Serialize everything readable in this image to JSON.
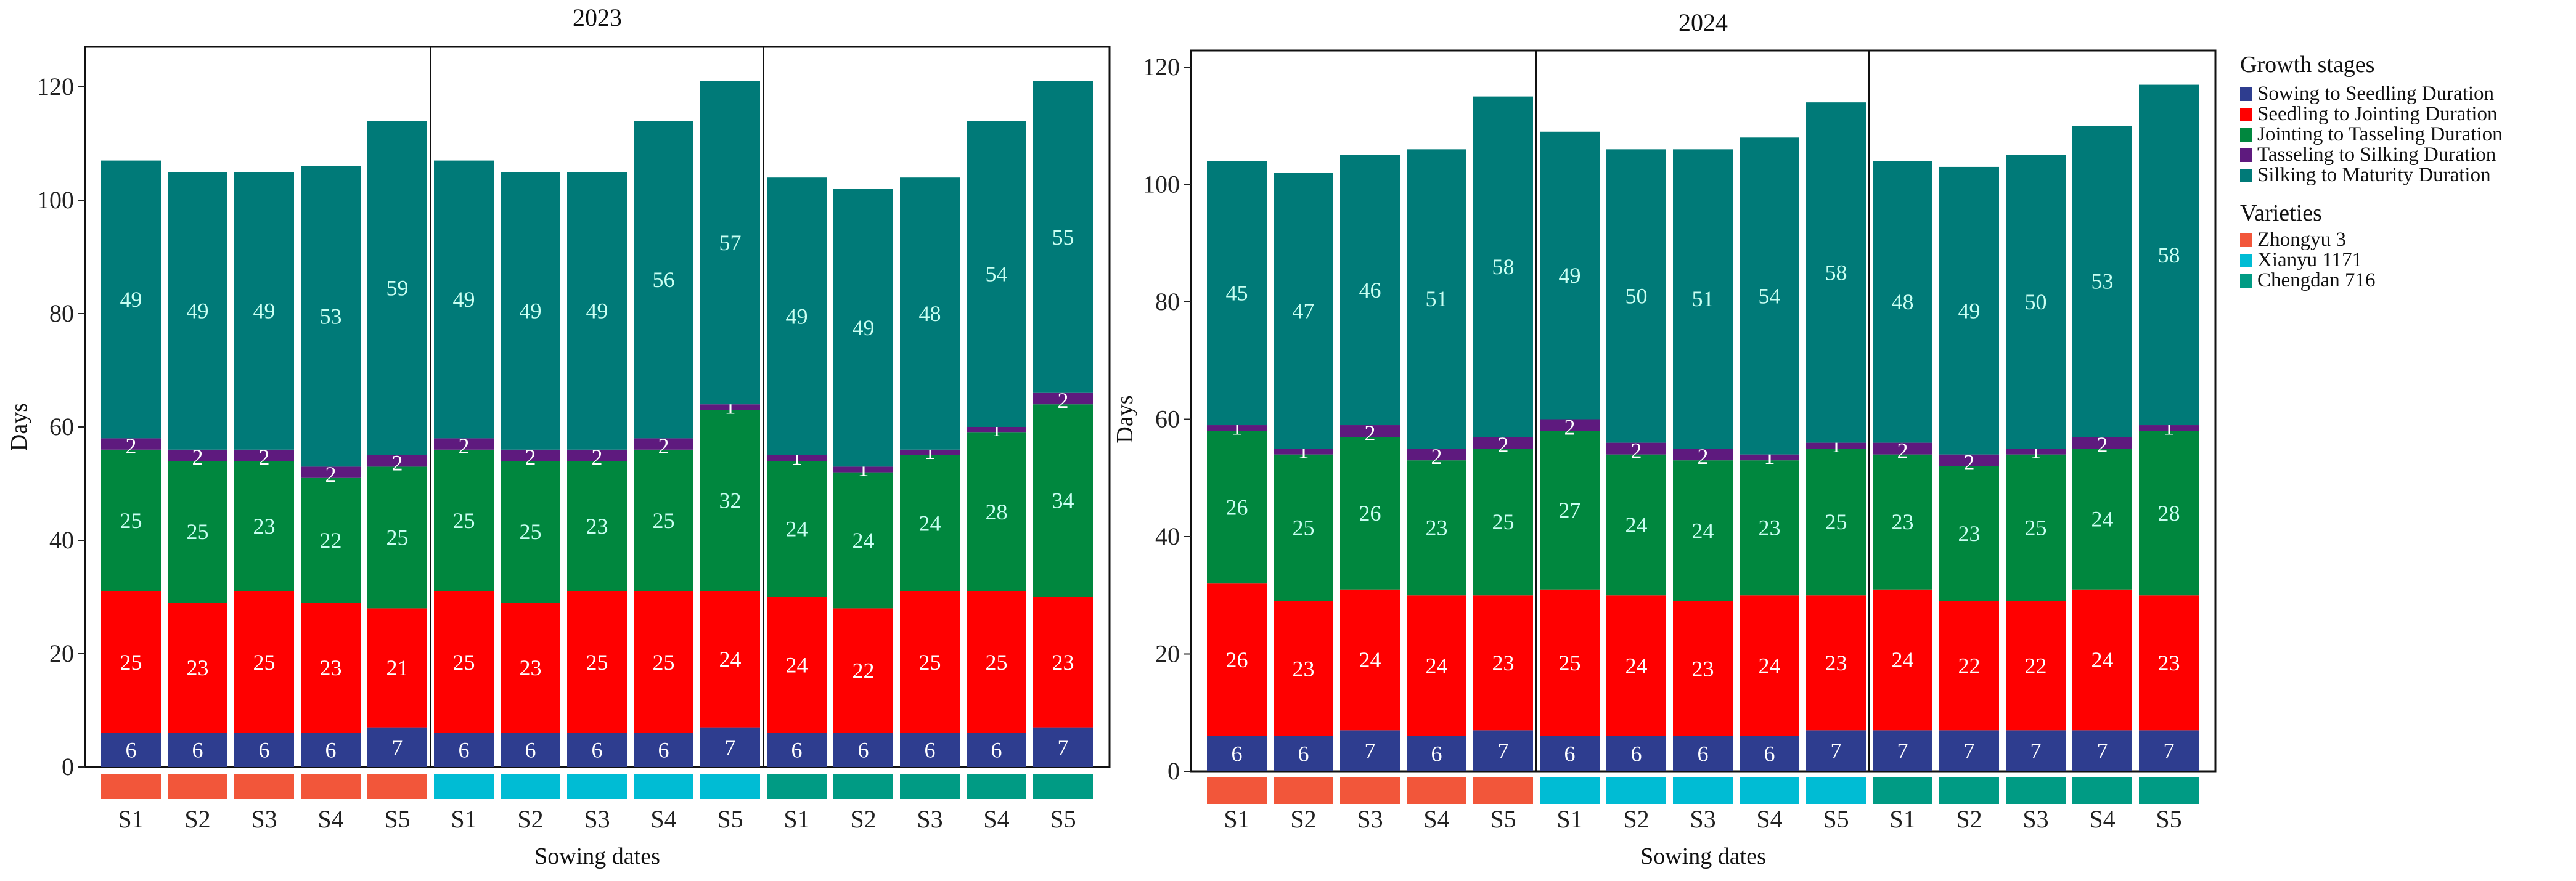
{
  "chart_data": {
    "type": "bar",
    "stacked": true,
    "ylabel": "Days",
    "xlabel": "Sowing dates",
    "ylim": [
      0,
      120
    ],
    "yticks": [
      0,
      20,
      40,
      60,
      80,
      100,
      120
    ],
    "categories": [
      "S1",
      "S2",
      "S3",
      "S4",
      "S5",
      "S1",
      "S2",
      "S3",
      "S4",
      "S5",
      "S1",
      "S2",
      "S3",
      "S4",
      "S5"
    ],
    "category_varieties": [
      0,
      0,
      0,
      0,
      0,
      1,
      1,
      1,
      1,
      1,
      2,
      2,
      2,
      2,
      2
    ],
    "legend": {
      "placement": "right",
      "stages_title": "Growth stages",
      "varieties_title": "Varieties"
    },
    "stages": [
      {
        "name": "Sowing to Seedling Duration",
        "color": "#2E3D8F"
      },
      {
        "name": "Seedling to Jointing Duration",
        "color": "#FF0000"
      },
      {
        "name": "Jointing to Tasseling Duration",
        "color": "#00873E"
      },
      {
        "name": "Tasseling to Silking Duration",
        "color": "#5E1A7E"
      },
      {
        "name": "Silking to Maturity Duration",
        "color": "#007A78"
      }
    ],
    "varieties": [
      {
        "name": "Zhongyu 3",
        "color": "#F2563A"
      },
      {
        "name": "Xianyu 1171",
        "color": "#00BCD4"
      },
      {
        "name": "Chengdan 716",
        "color": "#009B84"
      }
    ],
    "panels": [
      {
        "title": "2023",
        "series": [
          [
            6,
            6,
            6,
            6,
            7,
            6,
            6,
            6,
            6,
            7,
            6,
            6,
            6,
            6,
            7
          ],
          [
            25,
            23,
            25,
            23,
            21,
            25,
            23,
            25,
            25,
            24,
            24,
            22,
            25,
            25,
            23
          ],
          [
            25,
            25,
            23,
            22,
            25,
            25,
            25,
            23,
            25,
            32,
            24,
            24,
            24,
            28,
            34
          ],
          [
            2,
            2,
            2,
            2,
            2,
            2,
            2,
            2,
            2,
            1,
            1,
            1,
            1,
            1,
            2
          ],
          [
            49,
            49,
            49,
            53,
            59,
            49,
            49,
            49,
            56,
            57,
            49,
            49,
            48,
            54,
            55
          ]
        ]
      },
      {
        "title": "2024",
        "series": [
          [
            6,
            6,
            7,
            6,
            7,
            6,
            6,
            6,
            6,
            7,
            7,
            7,
            7,
            7,
            7
          ],
          [
            26,
            23,
            24,
            24,
            23,
            25,
            24,
            23,
            24,
            23,
            24,
            22,
            22,
            24,
            23
          ],
          [
            26,
            25,
            26,
            23,
            25,
            27,
            24,
            24,
            23,
            25,
            23,
            23,
            25,
            24,
            28
          ],
          [
            1,
            1,
            2,
            2,
            2,
            2,
            2,
            2,
            1,
            1,
            2,
            2,
            1,
            2,
            1
          ],
          [
            45,
            47,
            46,
            51,
            58,
            49,
            50,
            51,
            54,
            58,
            48,
            49,
            50,
            53,
            58
          ]
        ]
      }
    ]
  }
}
